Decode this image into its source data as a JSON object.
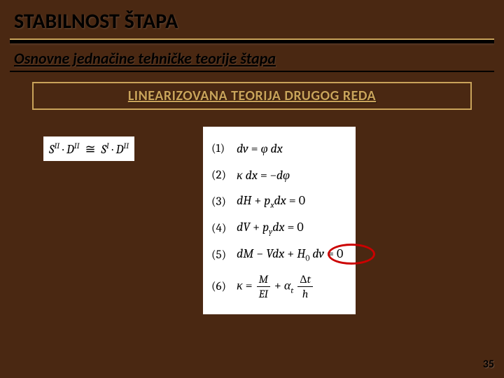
{
  "title": "STABILNOST ŠTAPA",
  "subtitle": "Osnovne jednačine tehničke teorije štapa",
  "boxed": "LINEARIZOVANA TEORIJA DRUGOG REDA",
  "leftEq": {
    "s": "S",
    "d": "D",
    "sup2": "II",
    "sup1": "I",
    "approx": "≅",
    "dot": "·"
  },
  "eq": {
    "n1": "(1)",
    "b1_a": "dv",
    "b1_b": "φ dx",
    "n2": "(2)",
    "b2_a": "κ dx",
    "b2_b": "−dφ",
    "n3": "(3)",
    "b3_a": "dH",
    "b3_p": "p",
    "b3_sx": "x",
    "b3_c": "dx",
    "b3_z": "0",
    "n4": "(4)",
    "b4_a": "dV",
    "b4_p": "p",
    "b4_sy": "y",
    "b4_c": "dx",
    "b4_z": "0",
    "n5": "(5)",
    "b5_a": "dM",
    "b5_b": "Vdx",
    "b5_h": "H",
    "b5_s0": "0",
    "b5_dv": "dv",
    "b5_z": "0",
    "n6": "(6)",
    "b6_k": "κ",
    "b6_M": "M",
    "b6_EI": "EI",
    "b6_a": "α",
    "b6_t": "t",
    "b6_dt": "Δt",
    "b6_h": "h"
  },
  "eqsym": "=",
  "plus": "+",
  "minus": "−",
  "page": "35",
  "colors": {
    "bg": "#4a2812",
    "gold": "#c9a35a",
    "red": "#cc0000"
  }
}
